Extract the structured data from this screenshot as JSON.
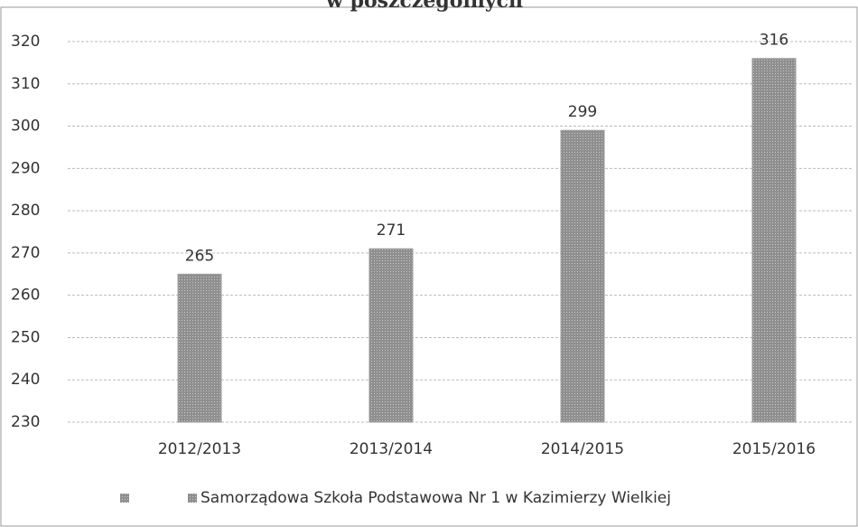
{
  "chart_data": {
    "type": "bar",
    "title": "w poszczególnych",
    "categories": [
      "2012/2013",
      "2013/2014",
      "2014/2015",
      "2015/2016"
    ],
    "series": [
      {
        "name": "Samorządowa Szkoła Podstawowa Nr 1 w Kazimierzy Wielkiej",
        "color": "#9c9c9c",
        "values": [
          265,
          271,
          299,
          316
        ]
      }
    ],
    "ylim": [
      230,
      320
    ],
    "yticks": [
      230,
      240,
      250,
      260,
      270,
      280,
      290,
      300,
      310,
      320
    ],
    "grid": true,
    "legend": "bottom"
  }
}
